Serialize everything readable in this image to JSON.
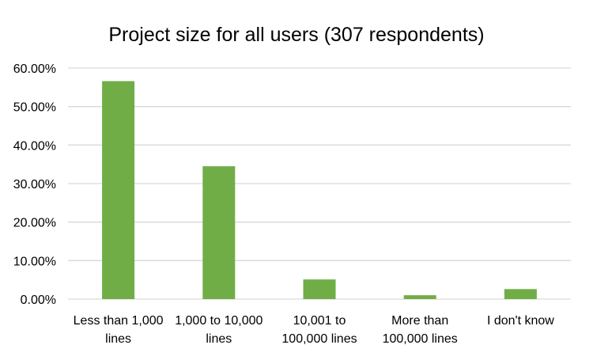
{
  "chart_data": {
    "type": "bar",
    "title": "Project size for all users (307 respondents)",
    "xlabel": "",
    "ylabel": "",
    "categories": [
      [
        "Less than 1,000",
        "lines"
      ],
      [
        "1,000 to 10,000",
        "lines"
      ],
      [
        "10,001 to",
        "100,000 lines"
      ],
      [
        "More than",
        "100,000 lines"
      ],
      [
        "I don't know"
      ]
    ],
    "values": [
      56.6,
      34.5,
      5.1,
      1.0,
      2.6
    ],
    "ylim": [
      0,
      60
    ],
    "yticks": [
      "0.00%",
      "10.00%",
      "20.00%",
      "30.00%",
      "40.00%",
      "50.00%",
      "60.00%"
    ],
    "grid": true,
    "legend": "none",
    "bar_color": "#70AD47",
    "grid_color": "#D9D9D9"
  }
}
